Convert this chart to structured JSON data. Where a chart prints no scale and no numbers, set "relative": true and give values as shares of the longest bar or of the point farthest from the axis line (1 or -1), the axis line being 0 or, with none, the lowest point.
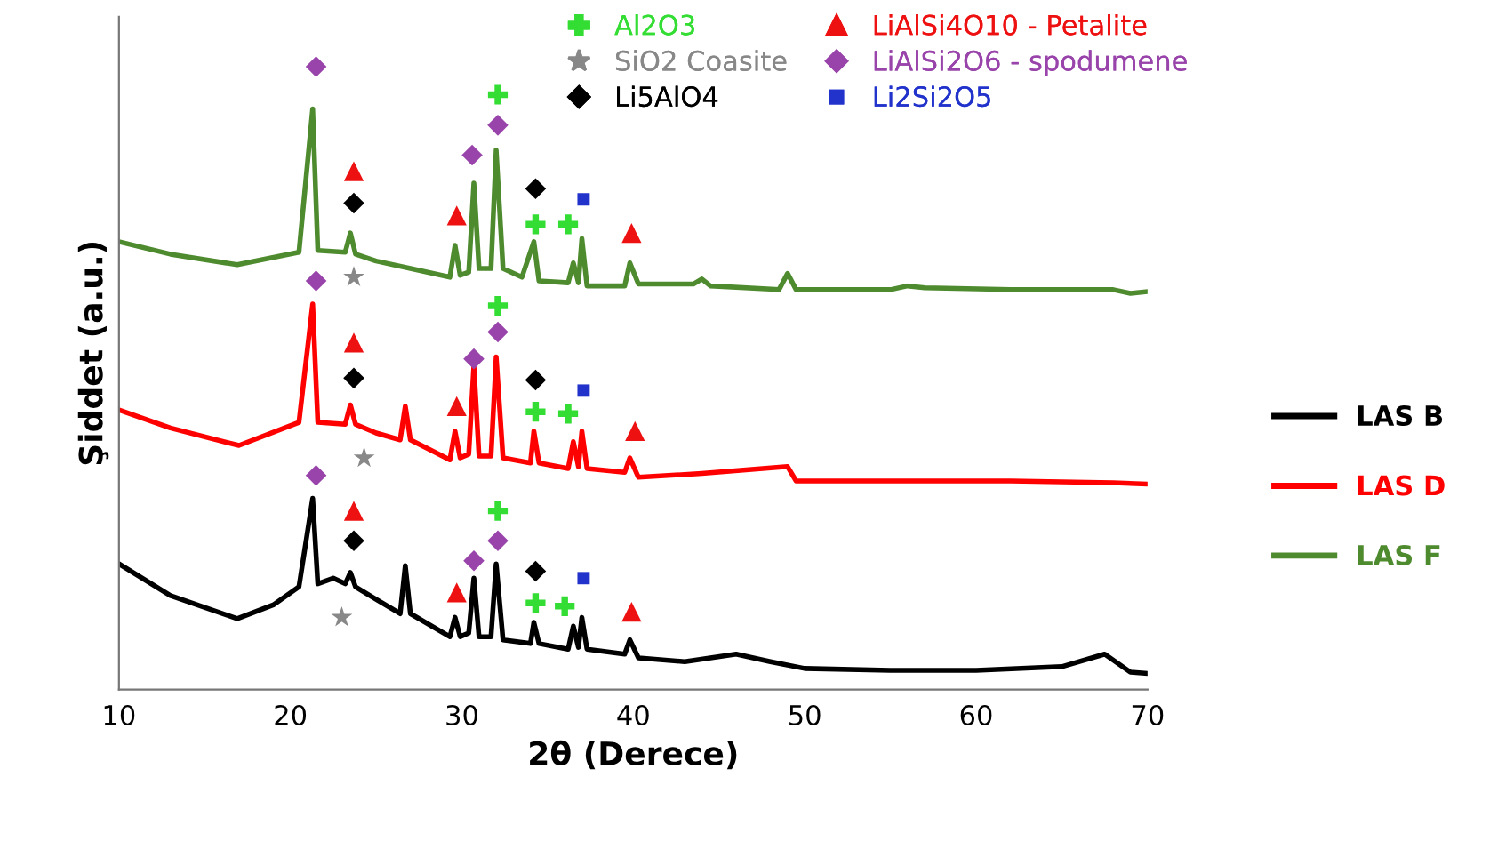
{
  "chart_data": {
    "type": "line",
    "relative": true,
    "xlabel": "2θ (Derece)",
    "ylabel": "Şiddet (a.u.)",
    "xlim": [
      10,
      70
    ],
    "xticks": [
      10,
      20,
      30,
      40,
      50,
      60,
      70
    ],
    "grid": false,
    "legend": "top right",
    "line_style": "solid",
    "marker": "none",
    "series": [
      {
        "name": "LAS B",
        "color": "#000000",
        "x": [
          10,
          13,
          16.9,
          19,
          20.5,
          21.3,
          21.6,
          22.5,
          23.2,
          23.5,
          23.8,
          25,
          26.4,
          26.7,
          27,
          29.3,
          29.6,
          29.9,
          30.4,
          30.7,
          31.0,
          31.7,
          32.0,
          32.4,
          34,
          34.2,
          34.5,
          36.2,
          36.5,
          36.8,
          37.0,
          37.3,
          39.5,
          39.8,
          40.3,
          43,
          46,
          48,
          50,
          55,
          60,
          65,
          67.5,
          69,
          70
        ],
        "values": [
          0.202,
          0.151,
          0.114,
          0.136,
          0.165,
          0.307,
          0.17,
          0.179,
          0.17,
          0.188,
          0.165,
          0.145,
          0.122,
          0.199,
          0.122,
          0.085,
          0.116,
          0.085,
          0.091,
          0.179,
          0.085,
          0.085,
          0.202,
          0.08,
          0.074,
          0.108,
          0.074,
          0.065,
          0.102,
          0.068,
          0.116,
          0.065,
          0.057,
          0.08,
          0.051,
          0.045,
          0.057,
          0.045,
          0.034,
          0.031,
          0.031,
          0.037,
          0.057,
          0.028,
          0.026
        ]
      },
      {
        "name": "LAS D",
        "color": "#ff0000",
        "x": [
          10,
          13,
          17,
          20.5,
          21.3,
          21.6,
          23.2,
          23.5,
          23.8,
          25,
          26.4,
          26.7,
          27,
          29.3,
          29.6,
          29.9,
          30.4,
          30.7,
          31.0,
          31.7,
          32.0,
          32.4,
          34,
          34.2,
          34.5,
          36.2,
          36.5,
          36.8,
          37.0,
          37.3,
          39.5,
          39.8,
          40.3,
          44,
          49,
          49.5,
          55,
          62,
          68,
          70
        ],
        "values": [
          0.449,
          0.42,
          0.392,
          0.429,
          0.619,
          0.429,
          0.426,
          0.457,
          0.426,
          0.412,
          0.401,
          0.455,
          0.401,
          0.369,
          0.415,
          0.372,
          0.378,
          0.52,
          0.375,
          0.375,
          0.534,
          0.372,
          0.364,
          0.415,
          0.364,
          0.355,
          0.398,
          0.358,
          0.415,
          0.355,
          0.349,
          0.372,
          0.341,
          0.347,
          0.358,
          0.335,
          0.335,
          0.335,
          0.332,
          0.33
        ]
      },
      {
        "name": "LAS F",
        "color": "#4e8a2e",
        "x": [
          10,
          13,
          16.9,
          20.5,
          21.3,
          21.6,
          23.2,
          23.5,
          23.8,
          25,
          27,
          29.3,
          29.6,
          29.9,
          30.4,
          30.7,
          31.0,
          31.7,
          32.0,
          32.4,
          33.5,
          34.2,
          34.5,
          36.2,
          36.5,
          36.8,
          37.0,
          37.3,
          39.5,
          39.8,
          40.3,
          43.5,
          44,
          44.5,
          48.5,
          49,
          49.5,
          55,
          56,
          57,
          62,
          68,
          69,
          70
        ],
        "values": [
          0.719,
          0.699,
          0.682,
          0.702,
          0.932,
          0.705,
          0.702,
          0.733,
          0.699,
          0.688,
          0.676,
          0.662,
          0.713,
          0.665,
          0.67,
          0.813,
          0.676,
          0.676,
          0.866,
          0.676,
          0.662,
          0.719,
          0.656,
          0.653,
          0.685,
          0.653,
          0.724,
          0.648,
          0.648,
          0.685,
          0.651,
          0.651,
          0.659,
          0.648,
          0.642,
          0.668,
          0.642,
          0.642,
          0.648,
          0.645,
          0.642,
          0.642,
          0.636,
          0.639
        ]
      },
      {
        "name": "Al2O3",
        "type": "scatter",
        "marker": "cross",
        "color": "#33dd33",
        "x": [
          32.1,
          34.3,
          36.2,
          32.1,
          34.3,
          36.2,
          32.1,
          34.3,
          36.0
        ],
        "values": [
          0.955,
          0.747,
          0.747,
          0.616,
          0.446,
          0.443,
          0.287,
          0.139,
          0.134
        ]
      },
      {
        "name": "SiO2 Coasite",
        "type": "scatter",
        "marker": "star",
        "color": "#888888",
        "x": [
          23.7,
          24.3,
          23.0
        ],
        "values": [
          0.662,
          0.372,
          0.116
        ]
      },
      {
        "name": "Li5AlO4",
        "type": "scatter",
        "marker": "diamond",
        "color": "#000000",
        "x": [
          23.7,
          34.3,
          23.7,
          34.3,
          23.7,
          34.3
        ],
        "values": [
          0.781,
          0.804,
          0.5,
          0.497,
          0.239,
          0.19
        ]
      },
      {
        "name": "LiAlSi4O10 - Petalite",
        "type": "scatter",
        "marker": "triangle",
        "color": "#ee1111",
        "x": [
          23.7,
          29.7,
          39.9,
          23.7,
          29.7,
          40.1,
          23.7,
          29.7,
          39.9
        ],
        "values": [
          0.832,
          0.761,
          0.733,
          0.557,
          0.455,
          0.415,
          0.287,
          0.156,
          0.125
        ]
      },
      {
        "name": "LiAlSi2O6 - spodumene",
        "type": "scatter",
        "marker": "diamond",
        "color": "#9944aa",
        "x": [
          21.5,
          30.6,
          32.1,
          21.5,
          30.7,
          32.1,
          21.5,
          30.7,
          32.1
        ],
        "values": [
          1.0,
          0.858,
          0.906,
          0.656,
          0.531,
          0.574,
          0.344,
          0.207,
          0.239
        ]
      },
      {
        "name": "Li2Si2O5",
        "type": "scatter",
        "marker": "square",
        "color": "#2233cc",
        "x": [
          37.1,
          37.1,
          37.1
        ],
        "values": [
          0.787,
          0.48,
          0.179
        ]
      }
    ]
  }
}
